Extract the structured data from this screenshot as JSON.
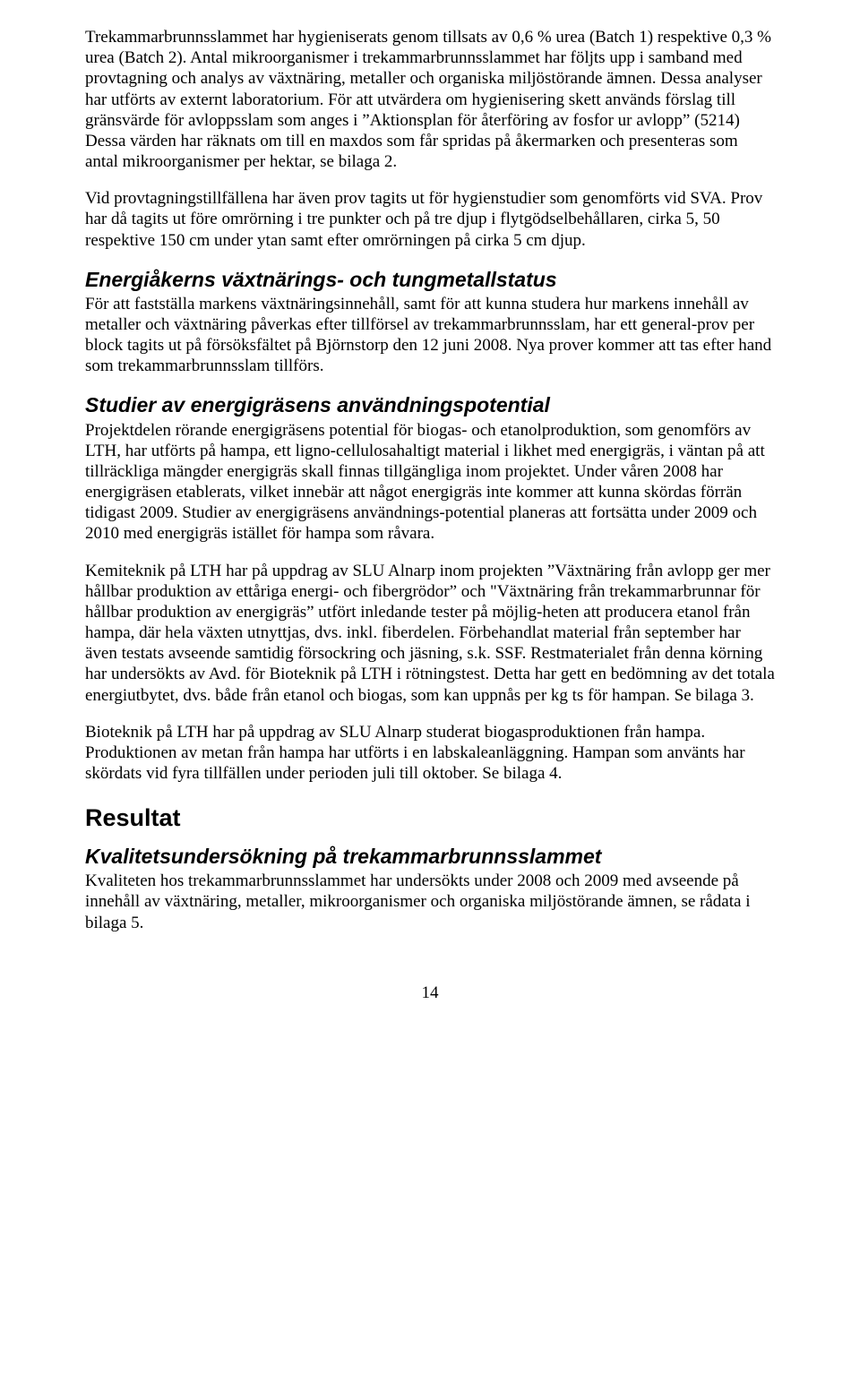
{
  "paragraphs": {
    "p1": "Trekammarbrunnsslammet har hygieniserats genom tillsats av 0,6 % urea (Batch 1) respektive 0,3 % urea (Batch 2). Antal mikroorganismer i trekammarbrunnsslammet har följts upp i samband med provtagning och analys av växtnäring, metaller och organiska miljöstörande ämnen. Dessa analyser har utförts av externt laboratorium. För att utvärdera om hygienisering skett används förslag till gränsvärde för avloppsslam som anges i ”Aktionsplan för återföring av fosfor ur avlopp” (5214) Dessa värden har räknats om till en maxdos som får spridas på åkermarken och presenteras som antal mikroorganismer per hektar, se bilaga 2.",
    "p2": "Vid provtagningstillfällena har även prov tagits ut för hygienstudier som genomförts vid SVA. Prov har då tagits ut före omrörning i tre punkter och på tre djup i flytgödselbehållaren, cirka 5, 50 respektive 150 cm under ytan samt efter omrörningen på cirka 5 cm djup.",
    "p3": "För att fastställa markens växtnäringsinnehåll, samt för att kunna studera hur markens innehåll av metaller och växtnäring påverkas efter tillförsel av trekammarbrunnsslam, har ett general-prov per block tagits ut på försöksfältet på Björnstorp den 12 juni 2008. Nya prover kommer att tas efter hand som trekammarbrunnsslam tillförs.",
    "p4": "Projektdelen rörande energigräsens potential för biogas- och etanolproduktion, som genomförs av LTH, har utförts på hampa, ett ligno-cellulosahaltigt material i likhet med energigräs, i väntan på att tillräckliga mängder energigräs skall finnas tillgängliga inom projektet. Under våren 2008 har energigräsen etablerats, vilket innebär att något energigräs inte kommer att kunna skördas förrän tidigast 2009. Studier av energigräsens användnings-potential planeras att fortsätta under 2009 och 2010 med energigräs istället för hampa som råvara.",
    "p5": "Kemiteknik på LTH har på uppdrag av SLU Alnarp inom projekten ”Växtnäring från avlopp ger mer hållbar produktion av ettåriga energi- och fibergrödor” och \"Växtnäring från trekammarbrunnar för hållbar produktion av energigräs” utfört inledande tester på möjlig-heten att producera etanol från hampa, där hela växten utnyttjas, dvs. inkl. fiberdelen. Förbehandlat material från september har även testats avseende samtidig försockring och jäsning, s.k. SSF. Restmaterialet från denna körning har undersökts av Avd. för Bioteknik på LTH i rötningstest. Detta har gett en bedömning av det totala energiutbytet, dvs. både från etanol och biogas, som kan uppnås per kg ts för hampan. Se bilaga 3.",
    "p6": "Bioteknik på LTH har på uppdrag av SLU Alnarp studerat biogasproduktionen från hampa. Produktionen av metan från hampa har utförts i en labskaleanläggning. Hampan som använts har skördats vid fyra tillfällen under perioden juli till oktober. Se bilaga 4.",
    "p7": "Kvaliteten hos trekammarbrunnsslammet har undersökts under 2008 och 2009 med avseende på innehåll av växtnäring, metaller, mikroorganismer och organiska miljöstörande ämnen, se rådata i bilaga 5."
  },
  "headings": {
    "h_energiakern": "Energiåkerns växtnärings- och tungmetallstatus",
    "h_studier": "Studier av energigräsens användningspotential",
    "h_resultat": "Resultat",
    "h_kvalitet": "Kvalitetsundersökning på trekammarbrunnsslammet"
  },
  "page_number": "14"
}
